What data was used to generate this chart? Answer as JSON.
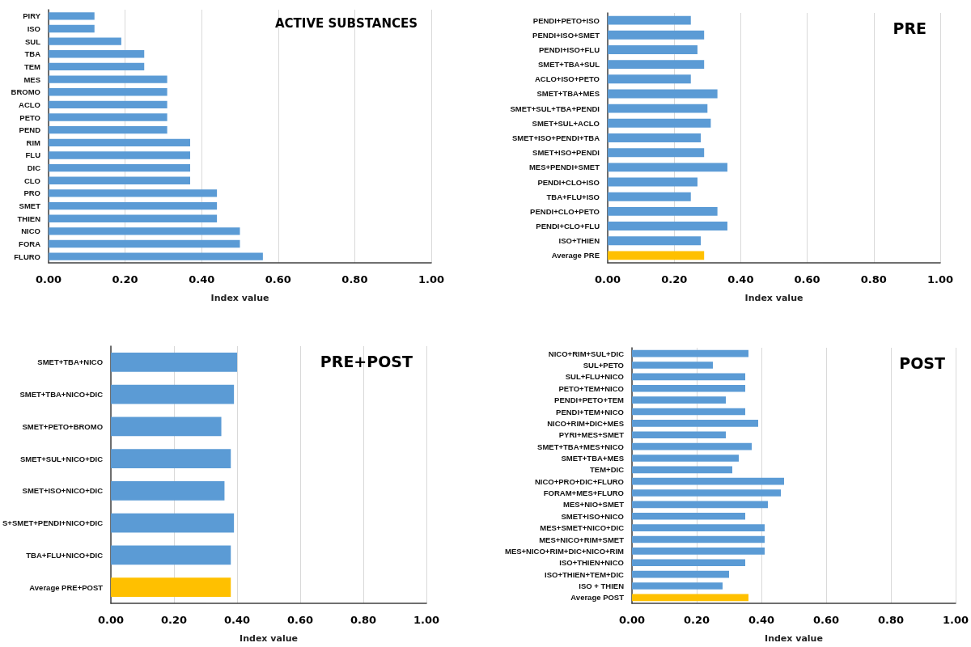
{
  "chart_data": [
    {
      "type": "bar",
      "orientation": "horizontal",
      "title": "ACTIVE SUBSTANCES",
      "xlabel": "Index value",
      "categories": [
        "PIRY",
        "ISO",
        "SUL",
        "TBA",
        "TEM",
        "MES",
        "BROMO",
        "ACLO",
        "PETO",
        "PEND",
        "RIM",
        "FLU",
        "DIC",
        "CLO",
        "PRO",
        "SMET",
        "THIEN",
        "NICO",
        "FORA",
        "FLURO"
      ],
      "values": [
        0.12,
        0.12,
        0.19,
        0.25,
        0.25,
        0.31,
        0.31,
        0.31,
        0.31,
        0.31,
        0.37,
        0.37,
        0.37,
        0.37,
        0.44,
        0.44,
        0.44,
        0.5,
        0.5,
        0.56
      ],
      "color": "#5b9bd5",
      "xlim": [
        0,
        1
      ],
      "xticks": [
        {
          "value": 0,
          "label": "0.00"
        },
        {
          "value": 0.2,
          "label": "0.20"
        },
        {
          "value": 0.4,
          "label": "0.40"
        },
        {
          "value": 0.6,
          "label": "0.60"
        },
        {
          "value": 0.8,
          "label": "0.80"
        },
        {
          "value": 1,
          "label": "1.00"
        }
      ],
      "grid": "x"
    },
    {
      "type": "bar",
      "orientation": "horizontal",
      "title": "PRE",
      "xlabel": "Index value",
      "categories": [
        "PENDI+PETO+ISO",
        "PENDI+ISO+SMET",
        "PENDI+ISO+FLU",
        "SMET+TBA+SUL",
        "ACLO+ISO+PETO",
        "SMET+TBA+MES",
        "SMET+SUL+TBA+PENDI",
        "SMET+SUL+ACLO",
        "SMET+ISO+PENDI+TBA",
        "SMET+ISO+PENDI",
        "MES+PENDI+SMET",
        "PENDI+CLO+ISO",
        "TBA+FLU+ISO",
        "PENDI+CLO+PETO",
        "PENDI+CLO+FLU",
        "ISO+THIEN",
        "Average PRE"
      ],
      "values": [
        0.25,
        0.29,
        0.27,
        0.29,
        0.25,
        0.33,
        0.3,
        0.31,
        0.28,
        0.29,
        0.36,
        0.27,
        0.25,
        0.33,
        0.36,
        0.28,
        0.29
      ],
      "colors": [
        "#5b9bd5",
        "#5b9bd5",
        "#5b9bd5",
        "#5b9bd5",
        "#5b9bd5",
        "#5b9bd5",
        "#5b9bd5",
        "#5b9bd5",
        "#5b9bd5",
        "#5b9bd5",
        "#5b9bd5",
        "#5b9bd5",
        "#5b9bd5",
        "#5b9bd5",
        "#5b9bd5",
        "#5b9bd5",
        "#ffc000"
      ],
      "xlim": [
        0,
        1
      ],
      "xticks": [
        {
          "value": 0,
          "label": "0.00"
        },
        {
          "value": 0.2,
          "label": "0.20"
        },
        {
          "value": 0.4,
          "label": "0.40"
        },
        {
          "value": 0.6,
          "label": "0.60"
        },
        {
          "value": 0.8,
          "label": "0.80"
        },
        {
          "value": 1,
          "label": "1.00"
        }
      ],
      "grid": "x"
    },
    {
      "type": "bar",
      "orientation": "horizontal",
      "title": "PRE+POST",
      "xlabel": "Index value",
      "categories": [
        "SMET+TBA+NICO",
        "SMET+TBA+NICO+DIC",
        "SMET+PETO+BROMO",
        "SMET+SUL+NICO+DIC",
        "SMET+ISO+NICO+DIC",
        "S+SMET+PENDI+NICO+DIC",
        "TBA+FLU+NICO+DIC",
        "Average PRE+POST"
      ],
      "values": [
        0.4,
        0.39,
        0.35,
        0.38,
        0.36,
        0.39,
        0.38,
        0.38
      ],
      "colors": [
        "#5b9bd5",
        "#5b9bd5",
        "#5b9bd5",
        "#5b9bd5",
        "#5b9bd5",
        "#5b9bd5",
        "#5b9bd5",
        "#ffc000"
      ],
      "xlim": [
        0,
        1
      ],
      "xticks": [
        {
          "value": 0,
          "label": "0.00"
        },
        {
          "value": 0.2,
          "label": "0.20"
        },
        {
          "value": 0.4,
          "label": "0.40"
        },
        {
          "value": 0.6,
          "label": "0.60"
        },
        {
          "value": 0.8,
          "label": "0.80"
        },
        {
          "value": 1,
          "label": "1.00"
        }
      ],
      "grid": "x"
    },
    {
      "type": "bar",
      "orientation": "horizontal",
      "title": "POST",
      "xlabel": "Index value",
      "categories": [
        "NICO+RIM+SUL+DIC",
        "SUL+PETO",
        "SUL+FLU+NICO",
        "PETO+TEM+NICO",
        "PENDI+PETO+TEM",
        "PENDI+TEM+NICO",
        "NICO+RIM+DIC+MES",
        "PYRI+MES+SMET",
        "SMET+TBA+MES+NICO",
        "SMET+TBA+MES",
        "TEM+DIC",
        "NICO+PRO+DIC+FLURO",
        "FORAM+MES+FLURO",
        "MES+NIO+SMET",
        "SMET+ISO+NICO",
        "MES+SMET+NICO+DIC",
        "MES+NICO+RIM+SMET",
        "MES+NICO+RIM+DIC+NICO+RIM",
        "ISO+THIEN+NICO",
        "ISO+THIEN+TEM+DIC",
        "ISO + THIEN",
        "Average POST"
      ],
      "values": [
        0.36,
        0.25,
        0.35,
        0.35,
        0.29,
        0.35,
        0.39,
        0.29,
        0.37,
        0.33,
        0.31,
        0.47,
        0.46,
        0.42,
        0.35,
        0.41,
        0.41,
        0.41,
        0.35,
        0.3,
        0.28,
        0.36
      ],
      "colors": [
        "#5b9bd5",
        "#5b9bd5",
        "#5b9bd5",
        "#5b9bd5",
        "#5b9bd5",
        "#5b9bd5",
        "#5b9bd5",
        "#5b9bd5",
        "#5b9bd5",
        "#5b9bd5",
        "#5b9bd5",
        "#5b9bd5",
        "#5b9bd5",
        "#5b9bd5",
        "#5b9bd5",
        "#5b9bd5",
        "#5b9bd5",
        "#5b9bd5",
        "#5b9bd5",
        "#5b9bd5",
        "#5b9bd5",
        "#ffc000"
      ],
      "xlim": [
        0,
        1
      ],
      "xticks": [
        {
          "value": 0,
          "label": "0.00"
        },
        {
          "value": 0.2,
          "label": "0.20"
        },
        {
          "value": 0.4,
          "label": "0.40"
        },
        {
          "value": 0.6,
          "label": "0.60"
        },
        {
          "value": 0.8,
          "label": "0.80"
        },
        {
          "value": 1,
          "label": "1.00"
        }
      ],
      "grid": "x"
    }
  ]
}
